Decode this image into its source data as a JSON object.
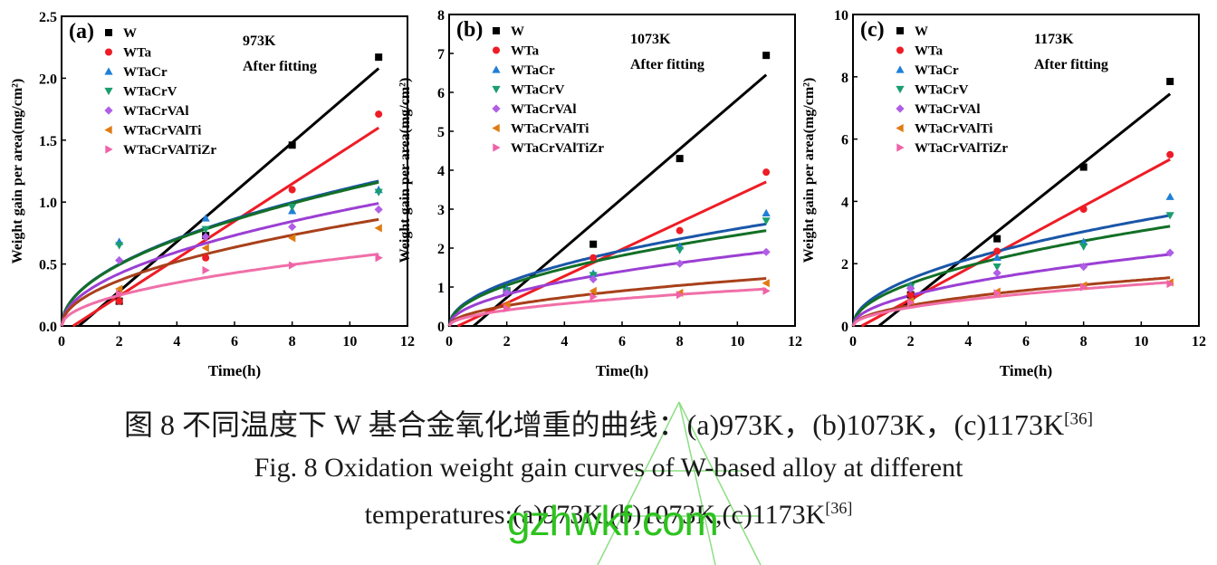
{
  "chart_data": [
    {
      "type": "scatter",
      "panel_label": "(a)",
      "temperature_label": "973K",
      "fit_label": "After fitting",
      "xlabel": "Time(h)",
      "ylabel": "Weight gain per area(mg/cm²)",
      "xlim": [
        0,
        12
      ],
      "ylim": [
        0,
        2.5
      ],
      "xticks": [
        "0",
        "2",
        "4",
        "6",
        "8",
        "10",
        "12"
      ],
      "yticks": [
        "0.0",
        "0.5",
        "1.0",
        "1.5",
        "2.0",
        "2.5"
      ],
      "x": [
        2,
        5,
        8,
        11
      ],
      "series": [
        {
          "name": "W",
          "values": [
            0.2,
            0.73,
            1.46,
            2.17
          ]
        },
        {
          "name": "WTa",
          "values": [
            0.2,
            0.55,
            1.1,
            1.71
          ]
        },
        {
          "name": "WTaCr",
          "values": [
            0.68,
            0.87,
            0.93,
            1.1
          ]
        },
        {
          "name": "WTaCrV",
          "values": [
            0.65,
            0.78,
            0.96,
            1.08
          ]
        },
        {
          "name": "WTaCrVAl",
          "values": [
            0.53,
            0.72,
            0.8,
            0.94
          ]
        },
        {
          "name": "WTaCrVAlTi",
          "values": [
            0.3,
            0.63,
            0.71,
            0.79
          ]
        },
        {
          "name": "WTaCrVAlTiZr",
          "values": [
            0.26,
            0.45,
            0.49,
            0.55
          ]
        }
      ],
      "fit_lines": [
        {
          "name": "W",
          "type": "linear",
          "t0": 0.6,
          "value_at_11": 2.08
        },
        {
          "name": "WTa",
          "type": "linear",
          "t0": 0.4,
          "value_at_11": 1.6
        },
        {
          "name": "WTaCr",
          "type": "parabolic",
          "value_at_11": 1.17
        },
        {
          "name": "WTaCrV",
          "type": "parabolic",
          "value_at_11": 1.16
        },
        {
          "name": "WTaCrVAl",
          "type": "parabolic",
          "value_at_11": 0.99
        },
        {
          "name": "WTaCrVAlTi",
          "type": "parabolic",
          "value_at_11": 0.86
        },
        {
          "name": "WTaCrVAlTiZr",
          "type": "parabolic",
          "value_at_11": 0.58
        }
      ]
    },
    {
      "type": "scatter",
      "panel_label": "(b)",
      "temperature_label": "1073K",
      "fit_label": "After fitting",
      "xlabel": "Time(h)",
      "ylabel": "Weight gain per area(mg/cm²)",
      "xlim": [
        0,
        12
      ],
      "ylim": [
        0,
        8
      ],
      "xticks": [
        "0",
        "2",
        "4",
        "6",
        "8",
        "10",
        "12"
      ],
      "yticks": [
        "0",
        "1",
        "2",
        "3",
        "4",
        "5",
        "6",
        "7",
        "8"
      ],
      "x": [
        2,
        5,
        8,
        11
      ],
      "series": [
        {
          "name": "W",
          "values": [
            0.9,
            2.1,
            4.3,
            6.95
          ]
        },
        {
          "name": "WTa",
          "values": [
            0.9,
            1.75,
            2.45,
            3.95
          ]
        },
        {
          "name": "WTaCr",
          "values": [
            0.95,
            1.35,
            2.05,
            2.9
          ]
        },
        {
          "name": "WTaCrV",
          "values": [
            0.9,
            1.3,
            1.95,
            2.7
          ]
        },
        {
          "name": "WTaCrVAl",
          "values": [
            0.85,
            1.2,
            1.6,
            1.9
          ]
        },
        {
          "name": "WTaCrVAlTi",
          "values": [
            0.55,
            0.9,
            0.85,
            1.1
          ]
        },
        {
          "name": "WTaCrVAlTiZr",
          "values": [
            0.45,
            0.75,
            0.8,
            0.9
          ]
        }
      ],
      "fit_lines": [
        {
          "name": "W",
          "type": "linear",
          "t0": 0.85,
          "value_at_11": 6.45
        },
        {
          "name": "WTa",
          "type": "linear",
          "t0": 0.3,
          "value_at_11": 3.7
        },
        {
          "name": "WTaCr",
          "type": "parabolic",
          "value_at_11": 2.62
        },
        {
          "name": "WTaCrV",
          "type": "parabolic",
          "value_at_11": 2.45
        },
        {
          "name": "WTaCrVAl",
          "type": "parabolic",
          "value_at_11": 1.9
        },
        {
          "name": "WTaCrVAlTi",
          "type": "parabolic",
          "value_at_11": 1.22
        },
        {
          "name": "WTaCrVAlTiZr",
          "type": "parabolic",
          "value_at_11": 0.95
        }
      ]
    },
    {
      "type": "scatter",
      "panel_label": "(c)",
      "temperature_label": "1173K",
      "fit_label": "After fitting",
      "xlabel": "Time(h)",
      "ylabel": "Weight gain per area(mg/cm²)",
      "xlim": [
        0,
        12
      ],
      "ylim": [
        0,
        10
      ],
      "xticks": [
        "0",
        "2",
        "4",
        "6",
        "8",
        "10",
        "12"
      ],
      "yticks": [
        "0",
        "2",
        "4",
        "6",
        "8",
        "10"
      ],
      "x": [
        2,
        5,
        8,
        11
      ],
      "series": [
        {
          "name": "W",
          "values": [
            1.0,
            2.8,
            5.1,
            7.85
          ]
        },
        {
          "name": "WTa",
          "values": [
            1.0,
            2.4,
            3.75,
            5.5
          ]
        },
        {
          "name": "WTaCr",
          "values": [
            1.3,
            2.2,
            2.7,
            4.15
          ]
        },
        {
          "name": "WTaCrV",
          "values": [
            1.25,
            1.9,
            2.55,
            3.55
          ]
        },
        {
          "name": "WTaCrVAl",
          "values": [
            1.2,
            1.7,
            1.9,
            2.35
          ]
        },
        {
          "name": "WTaCrVAlTi",
          "values": [
            0.8,
            1.1,
            1.3,
            1.4
          ]
        },
        {
          "name": "WTaCrVAlTiZr",
          "values": [
            0.75,
            1.05,
            1.25,
            1.35
          ]
        }
      ],
      "fit_lines": [
        {
          "name": "W",
          "type": "linear",
          "t0": 0.9,
          "value_at_11": 7.45
        },
        {
          "name": "WTa",
          "type": "linear",
          "t0": 0.3,
          "value_at_11": 5.35
        },
        {
          "name": "WTaCr",
          "type": "parabolic",
          "value_at_11": 3.55
        },
        {
          "name": "WTaCrV",
          "type": "parabolic",
          "value_at_11": 3.2
        },
        {
          "name": "WTaCrVAl",
          "type": "parabolic",
          "value_at_11": 2.3
        },
        {
          "name": "WTaCrVAlTi",
          "type": "parabolic",
          "value_at_11": 1.55
        },
        {
          "name": "WTaCrVAlTiZr",
          "type": "parabolic",
          "value_at_11": 1.4
        }
      ]
    }
  ],
  "series_style": [
    {
      "name": "W",
      "color": "#000000",
      "marker": "square",
      "fit_color": "#000000"
    },
    {
      "name": "WTa",
      "color": "#ee1c25",
      "marker": "circle",
      "fit_color": "#ee1c25"
    },
    {
      "name": "WTaCr",
      "color": "#1f7fd8",
      "marker": "triangle-up",
      "fit_color": "#1a56a8"
    },
    {
      "name": "WTaCrV",
      "color": "#1a9e6e",
      "marker": "triangle-down",
      "fit_color": "#136f26"
    },
    {
      "name": "WTaCrVAl",
      "color": "#b05ee6",
      "marker": "diamond",
      "fit_color": "#9b3fd3"
    },
    {
      "name": "WTaCrVAlTi",
      "color": "#e07b12",
      "marker": "triangle-left",
      "fit_color": "#a8401a"
    },
    {
      "name": "WTaCrVAlTiZr",
      "color": "#f062a8",
      "marker": "triangle-right",
      "fit_color": "#f06fa8"
    }
  ],
  "caption": {
    "cn": "图 8 不同温度下 W 基合金氧化增重的曲线：(a)973K，(b)1073K，(c)1173K",
    "cn_ref": "[36]",
    "en_line1": "Fig. 8 Oxidation weight gain curves of W-based alloy at different",
    "en_line2": "temperatures:(a)973K,(b)1073K,(c)1173K",
    "en_ref": "[36]"
  },
  "watermark": {
    "text": "gzhwkf.com",
    "color": "#2ec21f"
  }
}
